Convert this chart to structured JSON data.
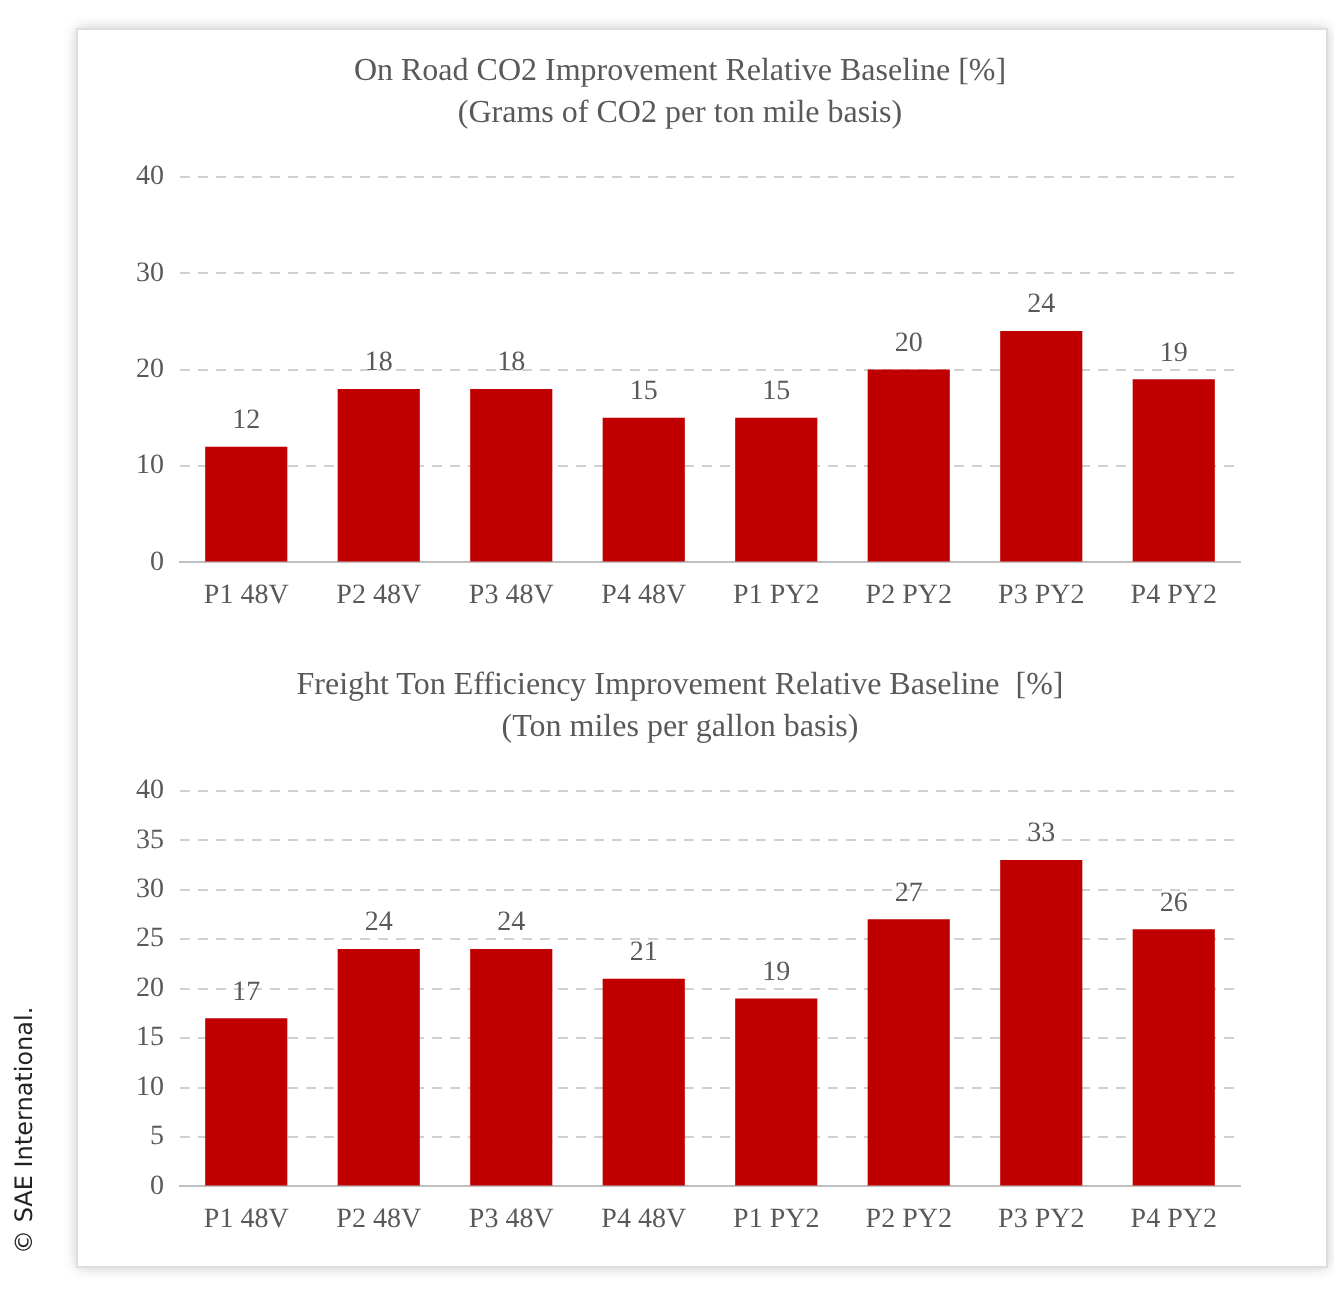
{
  "chart_data": [
    {
      "type": "bar",
      "title": "On Road CO2 Improvement Relative Baseline [%]",
      "subtitle": "(Grams of CO2 per ton mile basis)",
      "categories": [
        "P1 48V",
        "P2 48V",
        "P3 48V",
        "P4 48V",
        "P1 PY2",
        "P2 PY2",
        "P3 PY2",
        "P4 PY2"
      ],
      "values": [
        12,
        18,
        18,
        15,
        15,
        20,
        24,
        19
      ],
      "color": "#c00000",
      "ylim": [
        0,
        40
      ],
      "yticks": [
        0,
        10,
        20,
        30,
        40
      ],
      "grid": "y",
      "data_labels": true,
      "legend": false
    },
    {
      "type": "bar",
      "title": "Freight Ton Efficiency Improvement Relative Baseline  [%]",
      "subtitle": "(Ton miles per gallon basis)",
      "categories": [
        "P1 48V",
        "P2 48V",
        "P3 48V",
        "P4 48V",
        "P1 PY2",
        "P2 PY2",
        "P3 PY2",
        "P4 PY2"
      ],
      "values": [
        17,
        24,
        24,
        21,
        19,
        27,
        33,
        26
      ],
      "color": "#c00000",
      "ylim": [
        0,
        40
      ],
      "yticks": [
        0,
        5,
        10,
        15,
        20,
        25,
        30,
        35,
        40
      ],
      "grid": "y",
      "data_labels": true,
      "legend": false,
      "annotations": [
        "© SAE International."
      ]
    }
  ]
}
